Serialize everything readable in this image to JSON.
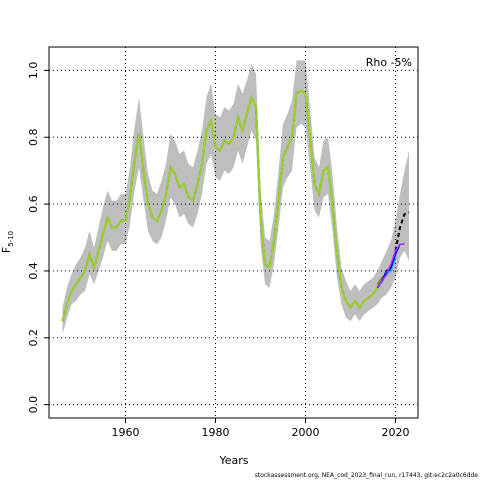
{
  "chart_data": {
    "type": "line",
    "xlabel": "Years",
    "ylabel_main": "F",
    "ylabel_sub": "5-10",
    "annotation": "Rho -5%",
    "footer": "stockassessment.org, NEA_cod_2023_final_run, r17443, git:ec2c2a0c6dde",
    "xlim": [
      1943,
      2025
    ],
    "ylim": [
      -0.04,
      1.07
    ],
    "x_ticks": [
      1960,
      1980,
      2000,
      2020
    ],
    "y_ticks": [
      0.0,
      0.2,
      0.4,
      0.6,
      0.8,
      1.0
    ],
    "x_tick_labels": [
      "1960",
      "1980",
      "2000",
      "2020"
    ],
    "y_tick_labels": [
      "0.0",
      "0.2",
      "0.4",
      "0.6",
      "0.8",
      "1.0"
    ],
    "grid": true,
    "colors": {
      "band": "#bebebe",
      "main_line": "#000000",
      "peel_line": "#9acd32",
      "peel_1": "#00c0ff",
      "peel_2": "#0000cd",
      "peel_3": "#9b30ff",
      "peel_4": "#6b8e23"
    },
    "years": [
      1946,
      1947,
      1948,
      1949,
      1950,
      1951,
      1952,
      1953,
      1954,
      1955,
      1956,
      1957,
      1958,
      1959,
      1960,
      1961,
      1962,
      1963,
      1964,
      1965,
      1966,
      1967,
      1968,
      1969,
      1970,
      1971,
      1972,
      1973,
      1974,
      1975,
      1976,
      1977,
      1978,
      1979,
      1980,
      1981,
      1982,
      1983,
      1984,
      1985,
      1986,
      1987,
      1988,
      1989,
      1990,
      1991,
      1992,
      1993,
      1994,
      1995,
      1996,
      1997,
      1998,
      1999,
      2000,
      2001,
      2002,
      2003,
      2004,
      2005,
      2006,
      2007,
      2008,
      2009,
      2010,
      2011,
      2012,
      2013,
      2014,
      2015,
      2016,
      2017,
      2018,
      2019,
      2020,
      2021,
      2022,
      2023
    ],
    "f_values": [
      0.25,
      0.3,
      0.34,
      0.36,
      0.38,
      0.4,
      0.45,
      0.41,
      0.46,
      0.51,
      0.56,
      0.53,
      0.53,
      0.55,
      0.55,
      0.62,
      0.73,
      0.81,
      0.7,
      0.6,
      0.56,
      0.55,
      0.58,
      0.63,
      0.71,
      0.69,
      0.65,
      0.66,
      0.62,
      0.61,
      0.66,
      0.72,
      0.82,
      0.85,
      0.77,
      0.76,
      0.79,
      0.78,
      0.8,
      0.86,
      0.82,
      0.87,
      0.92,
      0.89,
      0.56,
      0.42,
      0.41,
      0.49,
      0.61,
      0.74,
      0.77,
      0.8,
      0.93,
      0.94,
      0.93,
      0.8,
      0.66,
      0.63,
      0.7,
      0.71,
      0.6,
      0.45,
      0.35,
      0.31,
      0.29,
      0.31,
      0.29,
      0.31,
      0.32,
      0.33,
      0.35,
      0.37,
      0.39,
      0.41,
      0.46,
      0.53,
      0.57,
      0.575
    ],
    "upper": [
      0.29,
      0.35,
      0.39,
      0.42,
      0.44,
      0.47,
      0.52,
      0.47,
      0.53,
      0.59,
      0.64,
      0.61,
      0.61,
      0.63,
      0.63,
      0.71,
      0.83,
      0.92,
      0.8,
      0.69,
      0.64,
      0.63,
      0.67,
      0.72,
      0.81,
      0.79,
      0.75,
      0.76,
      0.72,
      0.71,
      0.76,
      0.82,
      0.92,
      0.96,
      0.87,
      0.86,
      0.89,
      0.88,
      0.9,
      0.96,
      0.93,
      0.97,
      1.02,
      0.99,
      0.65,
      0.5,
      0.49,
      0.57,
      0.7,
      0.84,
      0.87,
      0.91,
      1.03,
      1.03,
      1.03,
      0.89,
      0.74,
      0.71,
      0.79,
      0.8,
      0.69,
      0.53,
      0.41,
      0.37,
      0.34,
      0.36,
      0.34,
      0.36,
      0.37,
      0.38,
      0.4,
      0.43,
      0.46,
      0.49,
      0.55,
      0.63,
      0.7,
      0.76
    ],
    "lower": [
      0.21,
      0.26,
      0.3,
      0.31,
      0.33,
      0.34,
      0.39,
      0.36,
      0.4,
      0.44,
      0.49,
      0.46,
      0.46,
      0.48,
      0.48,
      0.54,
      0.64,
      0.71,
      0.61,
      0.52,
      0.49,
      0.48,
      0.5,
      0.55,
      0.62,
      0.6,
      0.56,
      0.57,
      0.54,
      0.53,
      0.57,
      0.63,
      0.72,
      0.75,
      0.68,
      0.67,
      0.7,
      0.69,
      0.71,
      0.76,
      0.72,
      0.77,
      0.82,
      0.79,
      0.48,
      0.36,
      0.35,
      0.42,
      0.53,
      0.65,
      0.68,
      0.7,
      0.83,
      0.84,
      0.83,
      0.71,
      0.58,
      0.56,
      0.62,
      0.63,
      0.52,
      0.38,
      0.3,
      0.26,
      0.25,
      0.27,
      0.25,
      0.27,
      0.28,
      0.29,
      0.3,
      0.32,
      0.33,
      0.35,
      0.38,
      0.44,
      0.46,
      0.43
    ],
    "peels": [
      {
        "color_key": "peel_4",
        "x": [
          2016,
          2017,
          2018
        ],
        "y": [
          0.36,
          0.38,
          0.39
        ]
      },
      {
        "color_key": "peel_1",
        "x": [
          2016,
          2017,
          2018,
          2019,
          2020
        ],
        "y": [
          0.35,
          0.37,
          0.39,
          0.4,
          0.44
        ]
      },
      {
        "color_key": "peel_2",
        "x": [
          2016,
          2017,
          2018,
          2019,
          2020,
          2021
        ],
        "y": [
          0.35,
          0.37,
          0.4,
          0.41,
          0.45,
          0.48
        ]
      },
      {
        "color_key": "peel_3",
        "x": [
          2016,
          2017,
          2018,
          2019,
          2020,
          2021,
          2022
        ],
        "y": [
          0.35,
          0.37,
          0.39,
          0.42,
          0.46,
          0.48,
          0.48
        ]
      }
    ]
  }
}
